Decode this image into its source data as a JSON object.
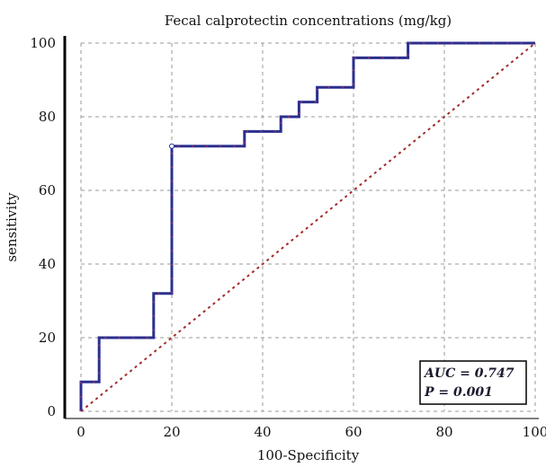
{
  "chart_data": {
    "type": "line",
    "title": "Fecal calprotectin concentrations (mg/kg)",
    "xlabel": "100-Specificity",
    "ylabel": "sensitivity",
    "xlim": [
      0,
      100
    ],
    "ylim": [
      0,
      100
    ],
    "x_ticks": [
      "0",
      "20",
      "40",
      "60",
      "80",
      "100"
    ],
    "y_ticks": [
      "0",
      "20",
      "40",
      "60",
      "80",
      "100"
    ],
    "grid": true,
    "series": [
      {
        "color": "#2b2f8f",
        "points": [
          [
            0,
            0
          ],
          [
            0,
            8
          ],
          [
            4,
            8
          ],
          [
            4,
            20
          ],
          [
            16,
            20
          ],
          [
            16,
            32
          ],
          [
            20,
            32
          ],
          [
            20,
            72
          ],
          [
            36,
            72
          ],
          [
            36,
            76
          ],
          [
            44,
            76
          ],
          [
            44,
            80
          ],
          [
            48,
            80
          ],
          [
            48,
            84
          ],
          [
            52,
            84
          ],
          [
            52,
            88
          ],
          [
            60,
            88
          ],
          [
            60,
            96
          ],
          [
            72,
            96
          ],
          [
            72,
            100
          ],
          [
            100,
            100
          ]
        ]
      },
      {
        "color": "#a52a2a",
        "style": "dotted",
        "points": [
          [
            0,
            0
          ],
          [
            100,
            100
          ]
        ]
      }
    ],
    "annotations": {
      "auc": "AUC = 0.747",
      "p": "P = 0.001"
    }
  }
}
